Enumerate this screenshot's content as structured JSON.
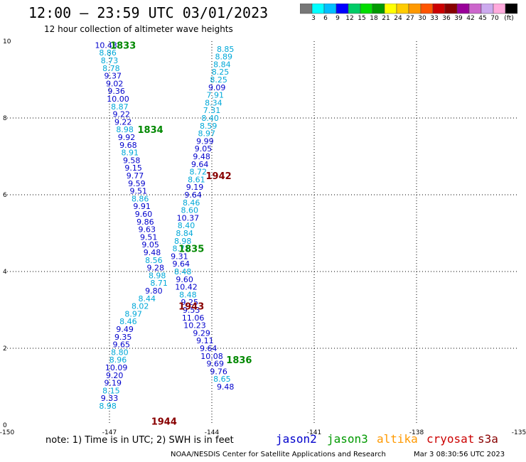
{
  "header": {
    "title": "12:00 – 23:59 UTC 03/01/2023",
    "subtitle": "12 hour collection of altimeter wave heights"
  },
  "legend": {
    "unit_label": "(ft)",
    "bins": [
      {
        "label": "",
        "color": "#777777"
      },
      {
        "label": "3",
        "color": "#00ffff"
      },
      {
        "label": "6",
        "color": "#00bfff"
      },
      {
        "label": "9",
        "color": "#0000ff"
      },
      {
        "label": "12",
        "color": "#00cc66"
      },
      {
        "label": "15",
        "color": "#00dd00"
      },
      {
        "label": "18",
        "color": "#009900"
      },
      {
        "label": "21",
        "color": "#ffff00"
      },
      {
        "label": "24",
        "color": "#ffcc00"
      },
      {
        "label": "27",
        "color": "#ff9900"
      },
      {
        "label": "30",
        "color": "#ff5500"
      },
      {
        "label": "33",
        "color": "#cc0000"
      },
      {
        "label": "36",
        "color": "#880000"
      },
      {
        "label": "39",
        "color": "#990099"
      },
      {
        "label": "42",
        "color": "#cc66cc"
      },
      {
        "label": "45",
        "color": "#ccaaee"
      },
      {
        "label": "70",
        "color": "#ffaadd"
      },
      {
        "label": "",
        "color": "#000000"
      }
    ]
  },
  "chart_data": {
    "type": "scatter",
    "x_ticks": [
      "-150",
      "-147",
      "-144",
      "-141",
      "-138",
      "-135"
    ],
    "y_ticks": [
      "0",
      "2",
      "4",
      "6",
      "8",
      "10"
    ],
    "xlim": [
      -150,
      -135
    ],
    "ylim": [
      0,
      10
    ],
    "grid": true,
    "colors": {
      "blue": "#0000cc",
      "cyan": "#00a8d8",
      "green": "#008800",
      "darkred": "#880000"
    },
    "track_labels": [
      {
        "text": "1833",
        "lon": -146.6,
        "lat": 9.9,
        "color": "green"
      },
      {
        "text": "1834",
        "lon": -145.8,
        "lat": 7.7,
        "color": "green"
      },
      {
        "text": "1942",
        "lon": -143.8,
        "lat": 6.5,
        "color": "darkred"
      },
      {
        "text": "1835",
        "lon": -144.6,
        "lat": 4.6,
        "color": "green"
      },
      {
        "text": "1943",
        "lon": -144.6,
        "lat": 3.1,
        "color": "darkred"
      },
      {
        "text": "1836",
        "lon": -143.2,
        "lat": 1.7,
        "color": "green"
      },
      {
        "text": "1944",
        "lon": -145.4,
        "lat": 0.1,
        "color": "darkred"
      }
    ],
    "points": [
      {
        "v": "10.43",
        "lon": -147.1,
        "lat": 9.9,
        "color": "blue"
      },
      {
        "v": "8.86",
        "lon": -147.05,
        "lat": 9.7,
        "color": "cyan"
      },
      {
        "v": "8.73",
        "lon": -147.0,
        "lat": 9.5,
        "color": "cyan"
      },
      {
        "v": "8.78",
        "lon": -146.95,
        "lat": 9.3,
        "color": "cyan"
      },
      {
        "v": "9.37",
        "lon": -146.9,
        "lat": 9.1,
        "color": "blue"
      },
      {
        "v": "9.02",
        "lon": -146.85,
        "lat": 8.9,
        "color": "blue"
      },
      {
        "v": "9.36",
        "lon": -146.8,
        "lat": 8.7,
        "color": "blue"
      },
      {
        "v": "10.00",
        "lon": -146.75,
        "lat": 8.5,
        "color": "blue"
      },
      {
        "v": "8.87",
        "lon": -146.7,
        "lat": 8.3,
        "color": "cyan"
      },
      {
        "v": "9.22",
        "lon": -146.65,
        "lat": 8.1,
        "color": "blue"
      },
      {
        "v": "9.22",
        "lon": -146.6,
        "lat": 7.9,
        "color": "blue"
      },
      {
        "v": "8.98",
        "lon": -146.55,
        "lat": 7.7,
        "color": "cyan"
      },
      {
        "v": "9.92",
        "lon": -146.5,
        "lat": 7.5,
        "color": "blue"
      },
      {
        "v": "9.68",
        "lon": -146.45,
        "lat": 7.3,
        "color": "blue"
      },
      {
        "v": "8.91",
        "lon": -146.4,
        "lat": 7.1,
        "color": "cyan"
      },
      {
        "v": "9.58",
        "lon": -146.35,
        "lat": 6.9,
        "color": "blue"
      },
      {
        "v": "9.15",
        "lon": -146.3,
        "lat": 6.7,
        "color": "blue"
      },
      {
        "v": "9.77",
        "lon": -146.25,
        "lat": 6.5,
        "color": "blue"
      },
      {
        "v": "9.59",
        "lon": -146.2,
        "lat": 6.3,
        "color": "blue"
      },
      {
        "v": "9.51",
        "lon": -146.15,
        "lat": 6.1,
        "color": "blue"
      },
      {
        "v": "8.86",
        "lon": -146.1,
        "lat": 5.9,
        "color": "cyan"
      },
      {
        "v": "9.91",
        "lon": -146.05,
        "lat": 5.7,
        "color": "blue"
      },
      {
        "v": "9.60",
        "lon": -146.0,
        "lat": 5.5,
        "color": "blue"
      },
      {
        "v": "9.86",
        "lon": -145.95,
        "lat": 5.3,
        "color": "blue"
      },
      {
        "v": "9.63",
        "lon": -145.9,
        "lat": 5.1,
        "color": "blue"
      },
      {
        "v": "9.51",
        "lon": -145.85,
        "lat": 4.9,
        "color": "blue"
      },
      {
        "v": "9.05",
        "lon": -145.8,
        "lat": 4.7,
        "color": "blue"
      },
      {
        "v": "9.48",
        "lon": -145.75,
        "lat": 4.5,
        "color": "blue"
      },
      {
        "v": "8.56",
        "lon": -145.7,
        "lat": 4.3,
        "color": "cyan"
      },
      {
        "v": "9.28",
        "lon": -145.65,
        "lat": 4.1,
        "color": "blue"
      },
      {
        "v": "8.98",
        "lon": -145.6,
        "lat": 3.9,
        "color": "cyan"
      },
      {
        "v": "8.71",
        "lon": -145.55,
        "lat": 3.7,
        "color": "cyan"
      },
      {
        "v": "9.80",
        "lon": -145.7,
        "lat": 3.5,
        "color": "blue"
      },
      {
        "v": "8.44",
        "lon": -145.9,
        "lat": 3.3,
        "color": "cyan"
      },
      {
        "v": "8.02",
        "lon": -146.1,
        "lat": 3.1,
        "color": "cyan"
      },
      {
        "v": "8.97",
        "lon": -146.3,
        "lat": 2.9,
        "color": "cyan"
      },
      {
        "v": "8.46",
        "lon": -146.45,
        "lat": 2.7,
        "color": "cyan"
      },
      {
        "v": "9.49",
        "lon": -146.55,
        "lat": 2.5,
        "color": "blue"
      },
      {
        "v": "9.35",
        "lon": -146.6,
        "lat": 2.3,
        "color": "blue"
      },
      {
        "v": "9.65",
        "lon": -146.65,
        "lat": 2.1,
        "color": "blue"
      },
      {
        "v": "8.80",
        "lon": -146.7,
        "lat": 1.9,
        "color": "cyan"
      },
      {
        "v": "8.96",
        "lon": -146.75,
        "lat": 1.7,
        "color": "cyan"
      },
      {
        "v": "10.09",
        "lon": -146.8,
        "lat": 1.5,
        "color": "blue"
      },
      {
        "v": "9.20",
        "lon": -146.85,
        "lat": 1.3,
        "color": "blue"
      },
      {
        "v": "9.19",
        "lon": -146.9,
        "lat": 1.1,
        "color": "blue"
      },
      {
        "v": "8.15",
        "lon": -146.95,
        "lat": 0.9,
        "color": "cyan"
      },
      {
        "v": "9.33",
        "lon": -147.0,
        "lat": 0.7,
        "color": "blue"
      },
      {
        "v": "8.98",
        "lon": -147.05,
        "lat": 0.5,
        "color": "cyan"
      },
      {
        "v": "8.85",
        "lon": -143.6,
        "lat": 9.8,
        "color": "cyan"
      },
      {
        "v": "8.89",
        "lon": -143.65,
        "lat": 9.6,
        "color": "cyan"
      },
      {
        "v": "8.84",
        "lon": -143.7,
        "lat": 9.4,
        "color": "cyan"
      },
      {
        "v": "8.25",
        "lon": -143.75,
        "lat": 9.2,
        "color": "cyan"
      },
      {
        "v": "8.25",
        "lon": -143.8,
        "lat": 9.0,
        "color": "cyan"
      },
      {
        "v": "9.09",
        "lon": -143.85,
        "lat": 8.8,
        "color": "blue"
      },
      {
        "v": "7.91",
        "lon": -143.9,
        "lat": 8.6,
        "color": "cyan"
      },
      {
        "v": "8.34",
        "lon": -143.95,
        "lat": 8.4,
        "color": "cyan"
      },
      {
        "v": "7.31",
        "lon": -144.0,
        "lat": 8.2,
        "color": "cyan"
      },
      {
        "v": "8.40",
        "lon": -144.05,
        "lat": 8.0,
        "color": "cyan"
      },
      {
        "v": "8.59",
        "lon": -144.1,
        "lat": 7.8,
        "color": "cyan"
      },
      {
        "v": "8.97",
        "lon": -144.15,
        "lat": 7.6,
        "color": "cyan"
      },
      {
        "v": "9.99",
        "lon": -144.2,
        "lat": 7.4,
        "color": "blue"
      },
      {
        "v": "9.05",
        "lon": -144.25,
        "lat": 7.2,
        "color": "blue"
      },
      {
        "v": "9.48",
        "lon": -144.3,
        "lat": 7.0,
        "color": "blue"
      },
      {
        "v": "9.64",
        "lon": -144.35,
        "lat": 6.8,
        "color": "blue"
      },
      {
        "v": "8.72",
        "lon": -144.4,
        "lat": 6.6,
        "color": "cyan"
      },
      {
        "v": "8.61",
        "lon": -144.45,
        "lat": 6.4,
        "color": "cyan"
      },
      {
        "v": "9.19",
        "lon": -144.5,
        "lat": 6.2,
        "color": "blue"
      },
      {
        "v": "9.64",
        "lon": -144.55,
        "lat": 6.0,
        "color": "blue"
      },
      {
        "v": "8.46",
        "lon": -144.6,
        "lat": 5.8,
        "color": "cyan"
      },
      {
        "v": "8.60",
        "lon": -144.65,
        "lat": 5.6,
        "color": "cyan"
      },
      {
        "v": "10.37",
        "lon": -144.7,
        "lat": 5.4,
        "color": "blue"
      },
      {
        "v": "8.40",
        "lon": -144.75,
        "lat": 5.2,
        "color": "cyan"
      },
      {
        "v": "8.84",
        "lon": -144.8,
        "lat": 5.0,
        "color": "cyan"
      },
      {
        "v": "8.98",
        "lon": -144.85,
        "lat": 4.8,
        "color": "cyan"
      },
      {
        "v": "8.71",
        "lon": -144.9,
        "lat": 4.6,
        "color": "cyan"
      },
      {
        "v": "9.31",
        "lon": -144.95,
        "lat": 4.4,
        "color": "blue"
      },
      {
        "v": "9.64",
        "lon": -144.9,
        "lat": 4.2,
        "color": "blue"
      },
      {
        "v": "8.48",
        "lon": -144.85,
        "lat": 4.0,
        "color": "cyan"
      },
      {
        "v": "9.60",
        "lon": -144.8,
        "lat": 3.8,
        "color": "blue"
      },
      {
        "v": "10.42",
        "lon": -144.75,
        "lat": 3.6,
        "color": "blue"
      },
      {
        "v": "8.48",
        "lon": -144.7,
        "lat": 3.4,
        "color": "cyan"
      },
      {
        "v": "9.25",
        "lon": -144.65,
        "lat": 3.2,
        "color": "blue"
      },
      {
        "v": "9.53",
        "lon": -144.6,
        "lat": 3.0,
        "color": "blue"
      },
      {
        "v": "11.06",
        "lon": -144.55,
        "lat": 2.8,
        "color": "blue"
      },
      {
        "v": "10.23",
        "lon": -144.5,
        "lat": 2.6,
        "color": "blue"
      },
      {
        "v": "9.29",
        "lon": -144.3,
        "lat": 2.4,
        "color": "blue"
      },
      {
        "v": "9.11",
        "lon": -144.2,
        "lat": 2.2,
        "color": "blue"
      },
      {
        "v": "9.64",
        "lon": -144.1,
        "lat": 2.0,
        "color": "blue"
      },
      {
        "v": "10.08",
        "lon": -144.0,
        "lat": 1.8,
        "color": "blue"
      },
      {
        "v": "9.69",
        "lon": -143.9,
        "lat": 1.6,
        "color": "blue"
      },
      {
        "v": "9.76",
        "lon": -143.8,
        "lat": 1.4,
        "color": "blue"
      },
      {
        "v": "8.65",
        "lon": -143.7,
        "lat": 1.2,
        "color": "cyan"
      },
      {
        "v": "9.48",
        "lon": -143.6,
        "lat": 1.0,
        "color": "blue"
      }
    ]
  },
  "note": "note: 1) Time is in UTC; 2) SWH is in feet",
  "satellites": [
    {
      "name": "jason2",
      "color": "#0000cc"
    },
    {
      "name": "jason3",
      "color": "#009900"
    },
    {
      "name": "altika",
      "color": "#ff9900"
    },
    {
      "name": "cryosat",
      "color": "#cc0000"
    },
    {
      "name": "s3a",
      "color": "#880000"
    }
  ],
  "footer": {
    "credit": "NOAA/NESDIS Center for Satellite Applications and Research",
    "timestamp": "Mar  3 08:30:56 UTC 2023"
  }
}
